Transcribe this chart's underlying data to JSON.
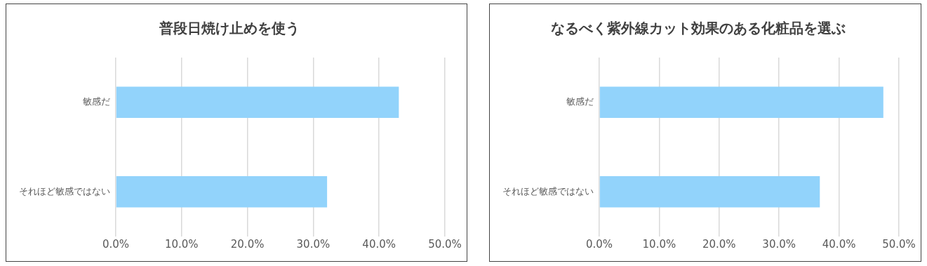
{
  "chart_data": [
    {
      "type": "bar",
      "orientation": "horizontal",
      "title": "普段日焼け止めを使う",
      "categories": [
        "敏感だ",
        "それほど敏感ではない"
      ],
      "values": [
        43.0,
        32.1
      ],
      "color": "#92d3fb",
      "xlim": [
        0,
        50
      ],
      "xticks": [
        {
          "value": 0,
          "label": "0.0%"
        },
        {
          "value": 10,
          "label": "10.0%"
        },
        {
          "value": 20,
          "label": "20.0%"
        },
        {
          "value": 30,
          "label": "30.0%"
        },
        {
          "value": 40,
          "label": "40.0%"
        },
        {
          "value": 50,
          "label": "50.0%"
        }
      ],
      "grid": "x",
      "legend": false
    },
    {
      "type": "bar",
      "orientation": "horizontal",
      "title": "なるべく紫外線カット効果のある化粧品を選ぶ",
      "categories": [
        "敏感だ",
        "それほど敏感ではない"
      ],
      "values": [
        47.4,
        36.8
      ],
      "color": "#92d3fb",
      "xlim": [
        0,
        50
      ],
      "xticks": [
        {
          "value": 0,
          "label": "0.0%"
        },
        {
          "value": 10,
          "label": "10.0%"
        },
        {
          "value": 20,
          "label": "20.0%"
        },
        {
          "value": 30,
          "label": "30.0%"
        },
        {
          "value": 40,
          "label": "40.0%"
        },
        {
          "value": 50,
          "label": "50.0%"
        }
      ],
      "grid": "x",
      "legend": false
    }
  ]
}
